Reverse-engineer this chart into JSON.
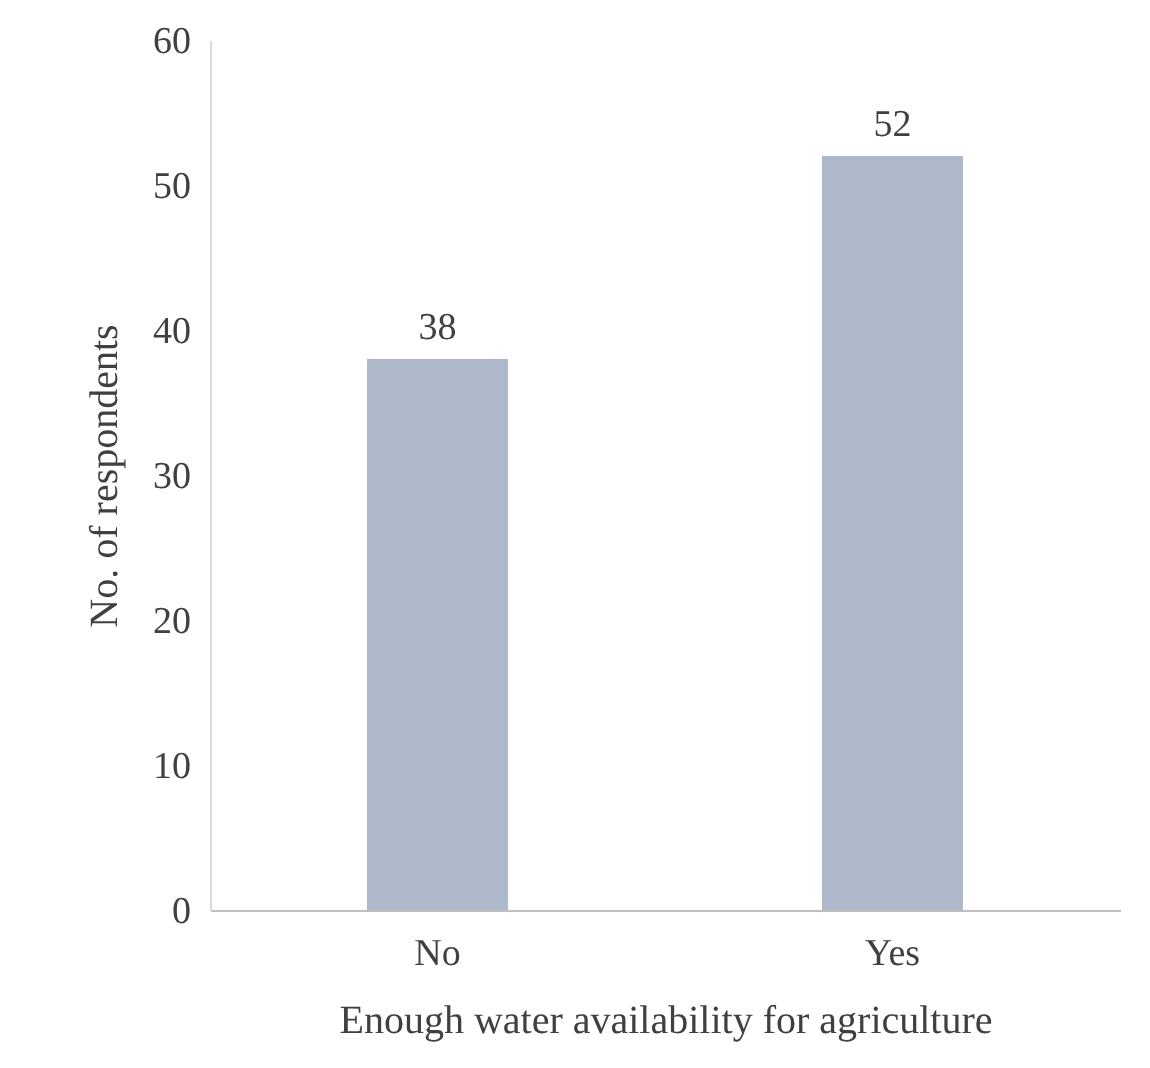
{
  "chart_data": {
    "type": "bar",
    "xlabel": "Enough water availability for agriculture",
    "ylabel": "No. of respondents",
    "categories": [
      "No",
      "Yes"
    ],
    "values": [
      38,
      52
    ],
    "color": "#adb9ca",
    "ylim": [
      0,
      60
    ],
    "yticks": [
      0,
      10,
      20,
      30,
      40,
      50,
      60
    ],
    "grid": false,
    "data_labels": true
  }
}
